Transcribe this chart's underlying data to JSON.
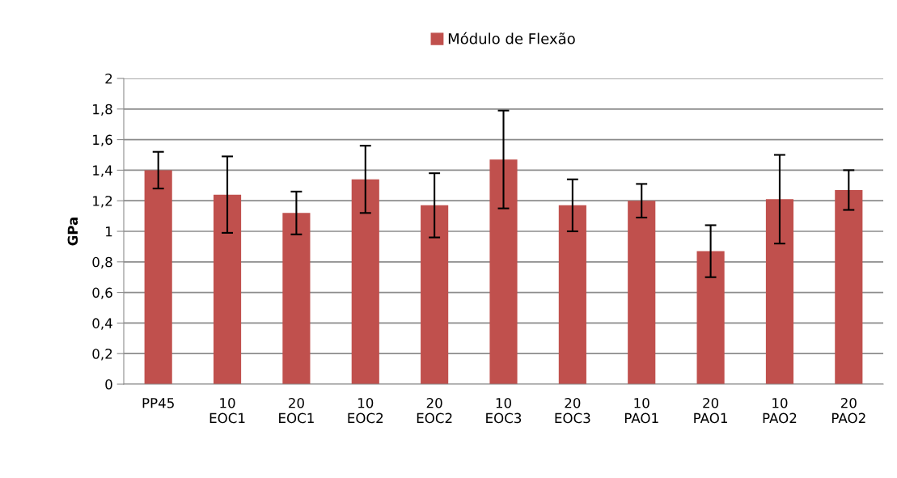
{
  "chart_data": {
    "type": "bar",
    "ylabel": "GPa",
    "categories": [
      "PP45",
      "10\nEOC1",
      "20\nEOC1",
      "10\nEOC2",
      "20\nEOC2",
      "10\nEOC3",
      "20\nEOC3",
      "10\nPAO1",
      "20\nPAO1",
      "10\nPAO2",
      "20\nPAO2"
    ],
    "series": [
      {
        "name": "Módulo de Flexão",
        "color": "#c0504d",
        "values": [
          1.4,
          1.24,
          1.12,
          1.34,
          1.17,
          1.47,
          1.17,
          1.2,
          0.87,
          1.21,
          1.27
        ],
        "errors": [
          0.12,
          0.25,
          0.14,
          0.22,
          0.21,
          0.32,
          0.17,
          0.11,
          0.17,
          0.29,
          0.13
        ]
      }
    ],
    "ylim": [
      0,
      2
    ],
    "yticks": [
      0,
      {
        "value": 0.2,
        "label": "0,2"
      },
      {
        "value": 0.4,
        "label": "0,4"
      },
      {
        "value": 0.6,
        "label": "0,6"
      },
      {
        "value": 0.8,
        "label": "0,8"
      },
      1,
      {
        "value": 1.2,
        "label": "1,2"
      },
      {
        "value": 1.4,
        "label": "1,4"
      },
      {
        "value": 1.6,
        "label": "1,6"
      },
      {
        "value": 1.8,
        "label": "1,8"
      },
      2
    ],
    "grid": "y",
    "legend": "top"
  }
}
